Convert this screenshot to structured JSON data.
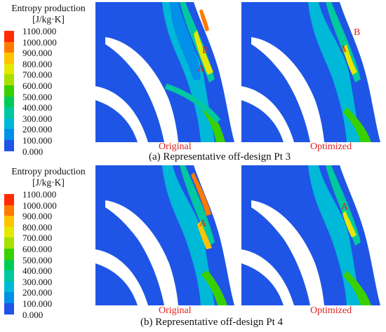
{
  "legend": {
    "title": "Entropy production",
    "unit": "[J/kg·K]",
    "ticks": [
      "1100.000",
      "1000.000",
      "900.000",
      "800.000",
      "700.000",
      "600.000",
      "500.000",
      "400.000",
      "300.000",
      "200.000",
      "100.000",
      "0.000"
    ],
    "colors": [
      "#ff2a00",
      "#ff7a00",
      "#ffc400",
      "#e5e800",
      "#a8e000",
      "#39d000",
      "#00cc55",
      "#00c8a0",
      "#00b8d8",
      "#0090e8",
      "#1f55e6"
    ]
  },
  "rows": [
    {
      "caption": "(a) Representative off-design Pt 3",
      "left_label": "Original",
      "right_label": "Optimized",
      "markers_left": [
        "B",
        "A"
      ],
      "markers_right": [
        "B",
        "A"
      ]
    },
    {
      "caption": "(b) Representative off-design Pt 4",
      "left_label": "Original",
      "right_label": "Optimized",
      "markers_left": [
        "A"
      ],
      "markers_right": [
        "A"
      ]
    }
  ]
}
